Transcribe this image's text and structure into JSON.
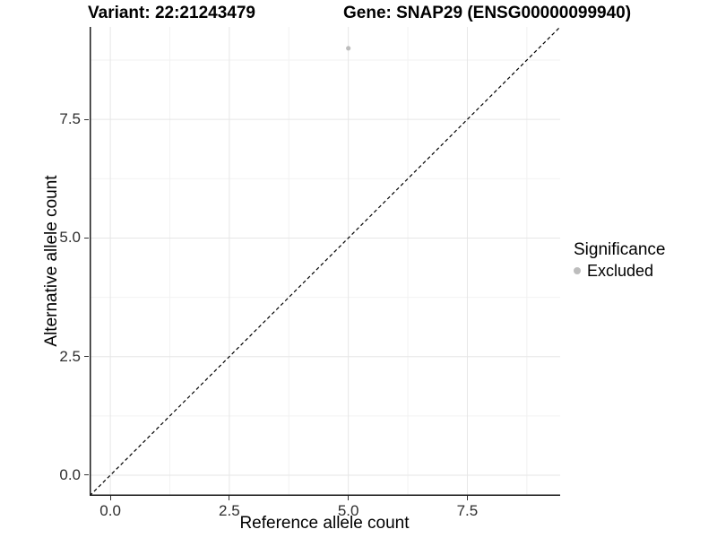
{
  "page": {
    "background": "#ffffff"
  },
  "chart_data": {
    "type": "scatter",
    "title_left": "Variant: 22:21243479",
    "title_right": "Gene: SNAP29 (ENSG00000099940)",
    "xlabel": "Reference allele count",
    "ylabel": "Alternative allele count",
    "xlim": [
      -0.435,
      9.45
    ],
    "ylim": [
      -0.435,
      9.45
    ],
    "x_ticks": {
      "values": [
        0,
        2.5,
        5,
        7.5
      ],
      "labels": [
        "0.0",
        "2.5",
        "5.0",
        "7.5"
      ]
    },
    "y_ticks": {
      "values": [
        0,
        2.5,
        5,
        7.5
      ],
      "labels": [
        "0.0",
        "2.5",
        "5.0",
        "7.5"
      ]
    },
    "x_minor": [
      1.25,
      3.75,
      6.25,
      8.75
    ],
    "y_minor": [
      1.25,
      3.75,
      6.25,
      8.75
    ],
    "grid": true,
    "legend_position": "right",
    "reference_line": {
      "slope": 1,
      "intercept": 0,
      "style": "dashed",
      "color": "#000000"
    },
    "series": [
      {
        "name": "Excluded",
        "color": "#bdbdbd",
        "point_radius": 2.6,
        "points": [
          [
            5,
            9
          ]
        ]
      }
    ],
    "legend": {
      "title": "Significance",
      "entries": [
        {
          "label": "Excluded",
          "color": "#bdbdbd"
        }
      ]
    },
    "colors": {
      "background": "#ffffff",
      "grid_major": "#e6e6e6",
      "grid_minor": "#f2f2f2",
      "axis_line": "#1a1a1a",
      "tick_mark": "#333333",
      "tick_label": "#2e2e2e",
      "point": "#bdbdbd"
    }
  }
}
